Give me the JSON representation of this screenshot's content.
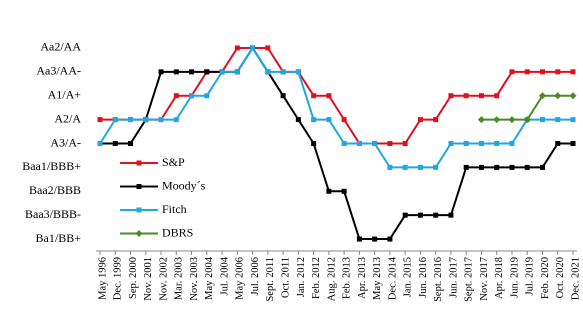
{
  "chart_data": {
    "type": "line",
    "categories": [
      "May 1996",
      "Dec. 1999",
      "Sep. 2000",
      "Nov. 2001",
      "Nov. 2002",
      "Mar. 2003",
      "Nov. 2003",
      "May 2004",
      "Jul. 2004",
      "May 2006",
      "Jul. 2006",
      "Sept. 2011",
      "Oct. 2011",
      "Jan. 2012",
      "Feb. 2012",
      "Aug. 2012",
      "Feb. 2013",
      "Apr. 2013",
      "May 2013",
      "Dec. 2014",
      "Jan. 2015",
      "Jun. 2016",
      "Sept. 2016",
      "Jun. 2017",
      "Sept. 2017",
      "Nov. 2017",
      "Apr. 2018",
      "Jun. 2019",
      "Jul. 2019",
      "Feb. 2020",
      "Oct. 2020",
      "Dec. 2021"
    ],
    "ylim": [
      0.5,
      9.5
    ],
    "yticks": [
      {
        "value": 1,
        "label": "Ba1/BB+"
      },
      {
        "value": 2,
        "label": "Baa3/BBB-"
      },
      {
        "value": 3,
        "label": "Baa2/BBB"
      },
      {
        "value": 4,
        "label": "Baa1/BBB+"
      },
      {
        "value": 5,
        "label": "A3/A-"
      },
      {
        "value": 6,
        "label": "A2/A"
      },
      {
        "value": 7,
        "label": "A1/A+"
      },
      {
        "value": 8,
        "label": "Aa3/AA-"
      },
      {
        "value": 9,
        "label": "Aa2/AA"
      }
    ],
    "legend": "left",
    "series": [
      {
        "name": "S&P",
        "color": "#e0101e",
        "values": [
          6,
          6,
          6,
          6,
          6,
          7,
          7,
          8,
          8,
          9,
          9,
          9,
          8,
          8,
          7,
          7,
          6,
          5,
          5,
          5,
          5,
          6,
          6,
          7,
          7,
          7,
          7,
          8,
          8,
          8,
          8,
          8
        ]
      },
      {
        "name": "Moody´s",
        "color": "#000000",
        "values": [
          5,
          5,
          5,
          6,
          8,
          8,
          8,
          8,
          8,
          8,
          9,
          8,
          7,
          6,
          5,
          3,
          3,
          1,
          1,
          1,
          2,
          2,
          2,
          2,
          4,
          4,
          4,
          4,
          4,
          4,
          5,
          5
        ]
      },
      {
        "name": "Fitch",
        "color": "#1ea8e0",
        "values": [
          5,
          6,
          6,
          6,
          6,
          6,
          7,
          7,
          8,
          8,
          9,
          8,
          8,
          8,
          6,
          6,
          5,
          5,
          5,
          4,
          4,
          4,
          4,
          5,
          5,
          5,
          5,
          5,
          6,
          6,
          6,
          6
        ]
      },
      {
        "name": "DBRS",
        "color": "#4a8a2a",
        "values": [
          null,
          null,
          null,
          null,
          null,
          null,
          null,
          null,
          null,
          null,
          null,
          null,
          null,
          null,
          null,
          null,
          null,
          null,
          null,
          null,
          null,
          null,
          null,
          null,
          null,
          6,
          6,
          6,
          6,
          7,
          7,
          7
        ]
      }
    ]
  }
}
